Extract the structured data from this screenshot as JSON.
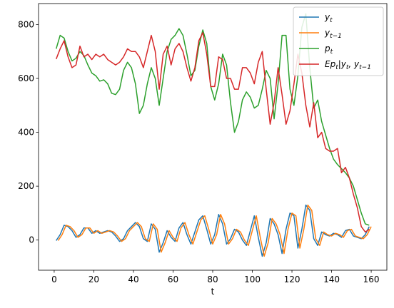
{
  "chart_data": {
    "type": "line",
    "xlabel": "t",
    "ylabel": "",
    "xlim": [
      -7.9,
      167.9
    ],
    "ylim": [
      -112,
      878
    ],
    "xticks": [
      0,
      20,
      40,
      60,
      80,
      100,
      120,
      140,
      160
    ],
    "yticks": [
      0,
      200,
      400,
      600,
      800
    ],
    "grid": false,
    "legend_position": "top-right",
    "series": [
      {
        "name": "y_t",
        "label_main": "y",
        "label_sub": "t",
        "color": "#1f77b4",
        "x": [
          1,
          3,
          5,
          7,
          9,
          11,
          13,
          15,
          17,
          19,
          21,
          23,
          25,
          27,
          29,
          31,
          33,
          35,
          37,
          39,
          41,
          43,
          45,
          47,
          49,
          51,
          53,
          55,
          57,
          59,
          61,
          63,
          65,
          67,
          69,
          71,
          73,
          75,
          77,
          79,
          81,
          83,
          85,
          87,
          89,
          91,
          93,
          95,
          97,
          99,
          101,
          103,
          105,
          107,
          109,
          111,
          113,
          115,
          117,
          119,
          121,
          123,
          125,
          127,
          129,
          131,
          133,
          135,
          137,
          139,
          141,
          143,
          145,
          147,
          149,
          151,
          153,
          155,
          157,
          159
        ],
        "values": [
          -2,
          20,
          55,
          50,
          35,
          10,
          20,
          45,
          45,
          25,
          35,
          25,
          30,
          35,
          30,
          15,
          -5,
          5,
          35,
          50,
          65,
          50,
          5,
          -5,
          60,
          40,
          -45,
          -10,
          35,
          10,
          -5,
          45,
          65,
          20,
          -15,
          30,
          75,
          90,
          40,
          -15,
          20,
          95,
          60,
          -15,
          5,
          40,
          30,
          0,
          -20,
          35,
          90,
          10,
          -60,
          -10,
          80,
          60,
          20,
          -50,
          40,
          100,
          90,
          -30,
          40,
          130,
          110,
          5,
          -20,
          30,
          20,
          15,
          25,
          20,
          10,
          35,
          40,
          15,
          10,
          5,
          20,
          50
        ]
      },
      {
        "name": "y_{t-1}",
        "label_main": "y",
        "label_sub": "t−1",
        "color": "#ff7f0e",
        "x": [
          2,
          4,
          6,
          8,
          10,
          12,
          14,
          16,
          18,
          20,
          22,
          24,
          26,
          28,
          30,
          32,
          34,
          36,
          38,
          40,
          42,
          44,
          46,
          48,
          50,
          52,
          54,
          56,
          58,
          60,
          62,
          64,
          66,
          68,
          70,
          72,
          74,
          76,
          78,
          80,
          82,
          84,
          86,
          88,
          90,
          92,
          94,
          96,
          98,
          100,
          102,
          104,
          106,
          108,
          110,
          112,
          114,
          116,
          118,
          120,
          122,
          124,
          126,
          128,
          130,
          132,
          134,
          136,
          138,
          140,
          142,
          144,
          146,
          148,
          150,
          152,
          154,
          156,
          158,
          160
        ],
        "values": [
          -2,
          20,
          55,
          50,
          35,
          10,
          20,
          45,
          45,
          25,
          35,
          25,
          30,
          35,
          30,
          15,
          -5,
          5,
          35,
          50,
          65,
          50,
          5,
          -5,
          60,
          40,
          -45,
          -10,
          35,
          10,
          -5,
          45,
          65,
          20,
          -15,
          30,
          75,
          90,
          40,
          -15,
          20,
          95,
          60,
          -15,
          5,
          40,
          30,
          0,
          -20,
          35,
          90,
          10,
          -60,
          -10,
          80,
          60,
          20,
          -50,
          40,
          100,
          90,
          -30,
          40,
          130,
          110,
          5,
          -20,
          30,
          20,
          15,
          25,
          20,
          10,
          35,
          40,
          15,
          10,
          5,
          20,
          50
        ]
      },
      {
        "name": "p_t",
        "label_main": "p",
        "label_sub": "t",
        "color": "#2ca02c",
        "x": [
          1,
          3,
          5,
          7,
          9,
          11,
          13,
          15,
          17,
          19,
          21,
          23,
          25,
          27,
          29,
          31,
          33,
          35,
          37,
          39,
          41,
          43,
          45,
          47,
          49,
          51,
          53,
          55,
          57,
          59,
          61,
          63,
          65,
          67,
          69,
          71,
          73,
          75,
          77,
          79,
          81,
          83,
          85,
          87,
          89,
          91,
          93,
          95,
          97,
          99,
          101,
          103,
          105,
          107,
          109,
          111,
          113,
          115,
          117,
          119,
          121,
          123,
          125,
          127,
          129,
          131,
          133,
          135,
          137,
          139,
          141,
          143,
          145,
          147,
          149,
          151,
          153,
          155,
          157,
          159
        ],
        "values": [
          710,
          760,
          750,
          700,
          665,
          675,
          700,
          685,
          650,
          620,
          610,
          590,
          595,
          580,
          545,
          540,
          560,
          630,
          660,
          640,
          580,
          470,
          500,
          580,
          640,
          600,
          500,
          600,
          700,
          745,
          760,
          785,
          760,
          690,
          610,
          630,
          720,
          780,
          730,
          570,
          520,
          580,
          690,
          650,
          510,
          400,
          440,
          520,
          550,
          530,
          490,
          500,
          560,
          630,
          600,
          450,
          580,
          760,
          760,
          560,
          500,
          610,
          790,
          840,
          640,
          490,
          520,
          440,
          390,
          340,
          300,
          280,
          265,
          250,
          230,
          200,
          150,
          100,
          60,
          55
        ]
      },
      {
        "name": "Ep_t|y_t, y_{t-1}",
        "label_main": "Ep",
        "label_sub": "t",
        "label_rest": "|y",
        "label_sub2": "t",
        "label_rest2": ", y",
        "label_sub3": "t−1",
        "color": "#d62728",
        "x": [
          1,
          3,
          5,
          7,
          9,
          11,
          13,
          15,
          17,
          19,
          21,
          23,
          25,
          27,
          29,
          31,
          33,
          35,
          37,
          39,
          41,
          43,
          45,
          47,
          49,
          51,
          53,
          55,
          57,
          59,
          61,
          63,
          65,
          67,
          69,
          71,
          73,
          75,
          77,
          79,
          81,
          83,
          85,
          87,
          89,
          91,
          93,
          95,
          97,
          99,
          101,
          103,
          105,
          107,
          109,
          111,
          113,
          115,
          117,
          119,
          121,
          123,
          125,
          127,
          129,
          131,
          133,
          135,
          137,
          139,
          141,
          143,
          145,
          147,
          149,
          151,
          153,
          155,
          157,
          159
        ],
        "values": [
          672,
          710,
          740,
          680,
          640,
          650,
          720,
          680,
          690,
          670,
          690,
          680,
          690,
          670,
          660,
          650,
          660,
          680,
          710,
          700,
          700,
          680,
          640,
          700,
          760,
          700,
          560,
          690,
          720,
          650,
          710,
          730,
          700,
          640,
          590,
          640,
          740,
          770,
          690,
          570,
          570,
          680,
          670,
          600,
          600,
          560,
          560,
          640,
          640,
          620,
          580,
          660,
          700,
          560,
          430,
          510,
          640,
          540,
          430,
          480,
          580,
          690,
          620,
          500,
          420,
          510,
          380,
          400,
          340,
          330,
          330,
          340,
          250,
          270,
          230,
          170,
          120,
          50,
          30,
          40
        ]
      }
    ]
  }
}
